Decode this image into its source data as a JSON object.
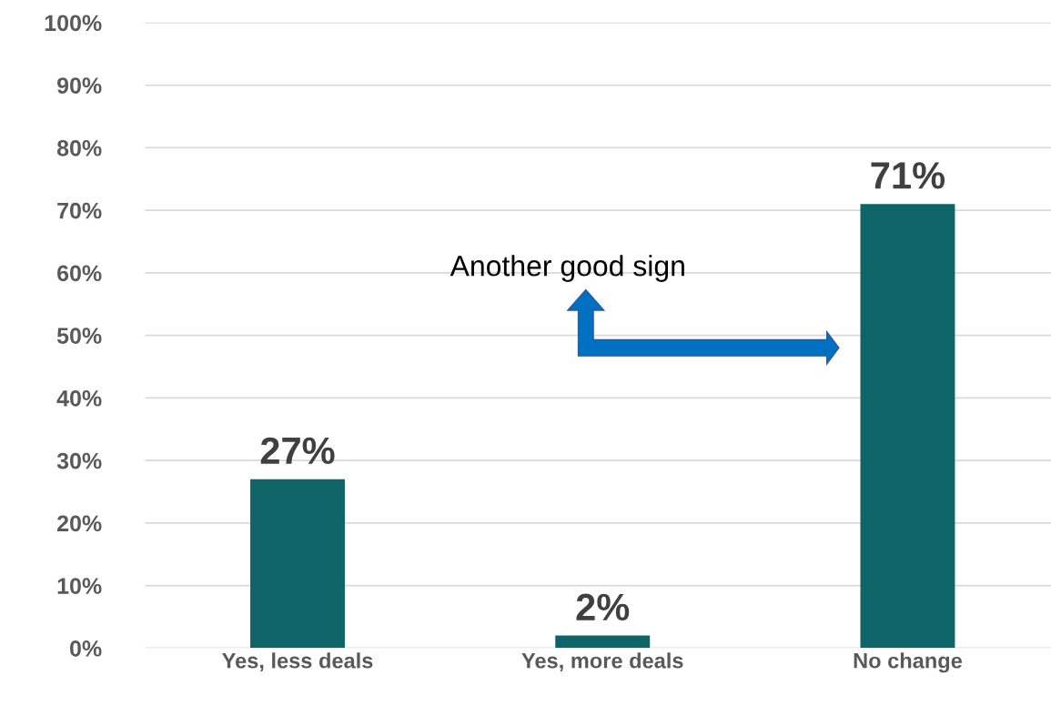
{
  "chart_data": {
    "type": "bar",
    "categories": [
      "Yes, less deals",
      "Yes, more deals",
      "No change"
    ],
    "values": [
      27,
      2,
      71
    ],
    "color": "#0e6466",
    "value_labels": [
      "27%",
      "2%",
      "71%"
    ],
    "ylim": [
      0,
      100
    ],
    "yticks": [
      {
        "value": 0,
        "label": "0%"
      },
      {
        "value": 10,
        "label": "10%"
      },
      {
        "value": 20,
        "label": "20%"
      },
      {
        "value": 30,
        "label": "30%"
      },
      {
        "value": 40,
        "label": "40%"
      },
      {
        "value": 50,
        "label": "50%"
      },
      {
        "value": 60,
        "label": "60%"
      },
      {
        "value": 70,
        "label": "70%"
      },
      {
        "value": 80,
        "label": "80%"
      },
      {
        "value": 90,
        "label": "90%"
      },
      {
        "value": 100,
        "label": "100%"
      }
    ],
    "grid": "y",
    "annotations": [
      "Another good sign"
    ]
  }
}
